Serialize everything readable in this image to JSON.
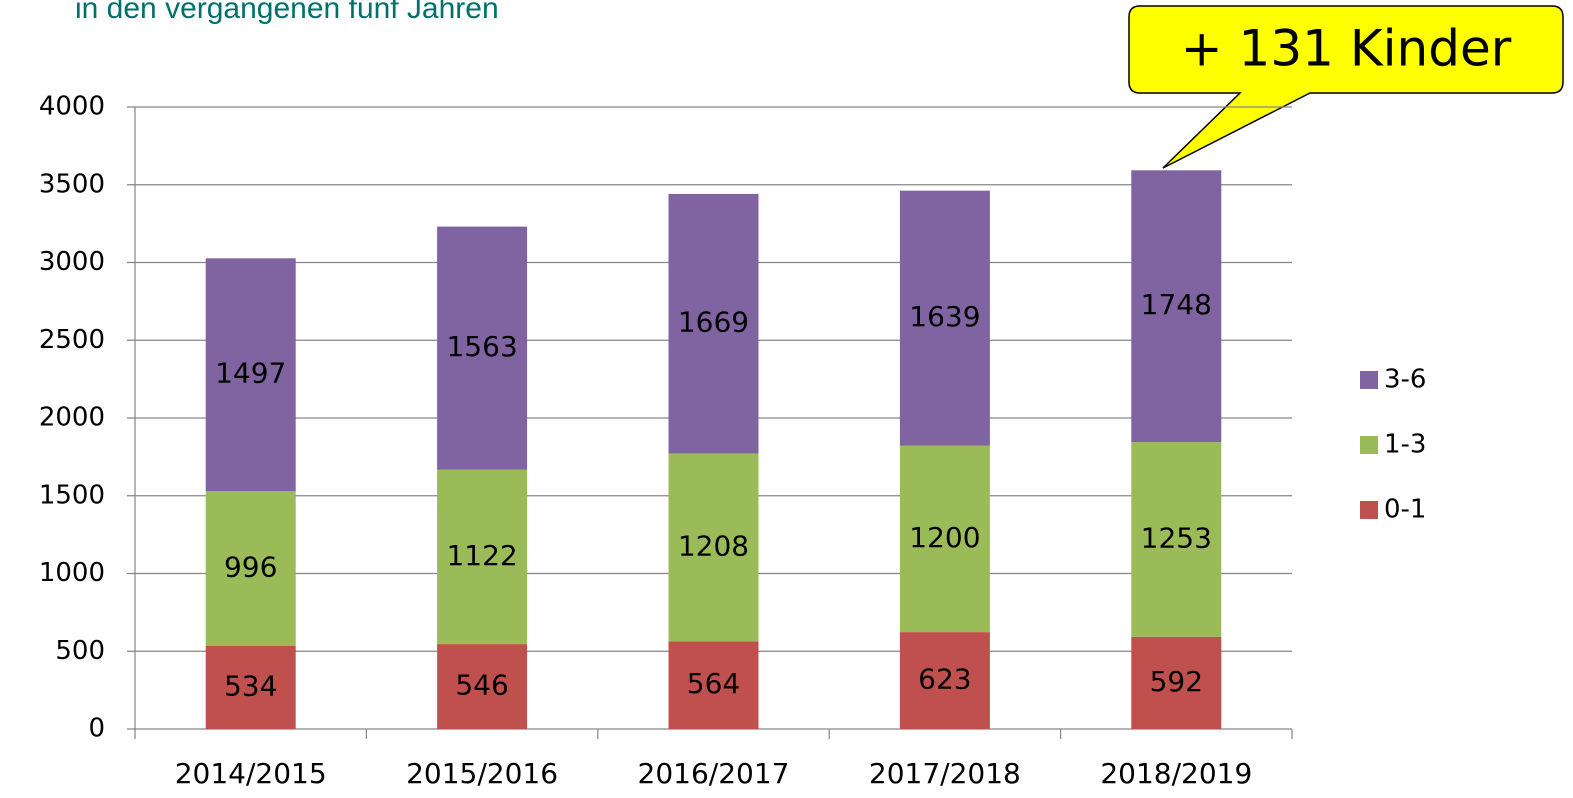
{
  "chart_data": {
    "type": "stacked_bar",
    "subtitle": "in den vergangenen fünf Jahren",
    "annotation": "+ 131 Kinder",
    "categories": [
      "2014/2015",
      "2015/2016",
      "2016/2017",
      "2017/2018",
      "2018/2019"
    ],
    "series": [
      {
        "name": "0-1",
        "color": "#c0504d",
        "values": [
          534,
          546,
          564,
          623,
          592
        ]
      },
      {
        "name": "1-3",
        "color": "#9bbb59",
        "values": [
          996,
          1122,
          1208,
          1200,
          1253
        ]
      },
      {
        "name": "3-6",
        "color": "#8064a2",
        "values": [
          1497,
          1563,
          1669,
          1639,
          1748
        ]
      }
    ],
    "ylim": [
      0,
      4000
    ],
    "yticks": [
      0,
      500,
      1000,
      1500,
      2000,
      2500,
      3000,
      3500,
      4000
    ],
    "grid": true,
    "legend": "right"
  }
}
